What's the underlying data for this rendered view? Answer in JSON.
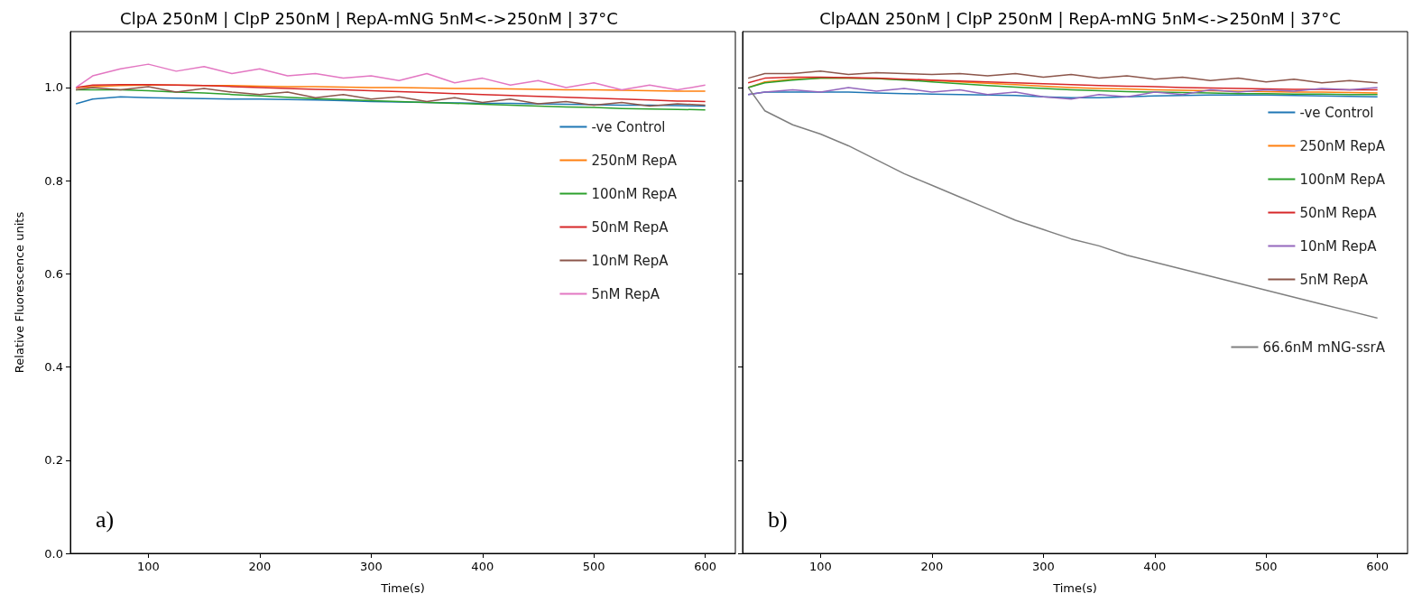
{
  "chart_data": [
    {
      "type": "line",
      "title": "ClpA 250nM | ClpP 250nM | RepA-mNG 5nM<->250nM | 37°C",
      "xlabel": "Time(s)",
      "ylabel": "Relative Fluorescence units",
      "annotations": [
        "a)"
      ],
      "legend": "right",
      "xlim": [
        30,
        627
      ],
      "xticks": [
        100,
        200,
        300,
        400,
        500,
        600
      ],
      "ylim": [
        0,
        1.12
      ],
      "yticks": [
        {
          "value": 0,
          "label": "0.0"
        },
        0.2,
        0.4,
        0.6,
        0.8,
        {
          "value": 1,
          "label": "1.0"
        }
      ],
      "grid": false,
      "x": [
        35,
        50,
        75,
        100,
        125,
        150,
        175,
        200,
        225,
        250,
        275,
        300,
        325,
        350,
        375,
        400,
        425,
        450,
        475,
        500,
        525,
        550,
        575,
        600
      ],
      "series": [
        {
          "name": "-ve Control",
          "color": "#1f77b4",
          "values": [
            0.965,
            0.975,
            0.98,
            0.978,
            0.977,
            0.976,
            0.975,
            0.975,
            0.974,
            0.973,
            0.972,
            0.97,
            0.969,
            0.968,
            0.967,
            0.966,
            0.966,
            0.965,
            0.964,
            0.963,
            0.962,
            0.962,
            0.961,
            0.96
          ]
        },
        {
          "name": "250nM RepA",
          "color": "#ff7f0e",
          "values": [
            1.0,
            1.002,
            1.004,
            1.005,
            1.005,
            1.004,
            1.004,
            1.003,
            1.002,
            1.002,
            1.001,
            1.0,
            1.0,
            0.999,
            0.998,
            0.998,
            0.997,
            0.996,
            0.995,
            0.995,
            0.994,
            0.993,
            0.992,
            0.992
          ]
        },
        {
          "name": "100nM RepA",
          "color": "#2ca02c",
          "values": [
            0.995,
            0.995,
            0.995,
            0.993,
            0.99,
            0.988,
            0.985,
            0.982,
            0.979,
            0.976,
            0.974,
            0.972,
            0.97,
            0.968,
            0.966,
            0.964,
            0.962,
            0.96,
            0.958,
            0.957,
            0.955,
            0.954,
            0.953,
            0.952
          ]
        },
        {
          "name": "50nM RepA",
          "color": "#d62728",
          "values": [
            1.0,
            1.005,
            1.006,
            1.006,
            1.005,
            1.004,
            1.002,
            1.0,
            0.998,
            0.996,
            0.995,
            0.993,
            0.991,
            0.989,
            0.987,
            0.985,
            0.983,
            0.981,
            0.979,
            0.977,
            0.975,
            0.973,
            0.971,
            0.97
          ]
        },
        {
          "name": "10nM RepA",
          "color": "#8c564b",
          "values": [
            0.995,
            1.0,
            0.995,
            1.002,
            0.99,
            0.998,
            0.99,
            0.985,
            0.99,
            0.978,
            0.985,
            0.975,
            0.98,
            0.97,
            0.978,
            0.968,
            0.975,
            0.965,
            0.97,
            0.962,
            0.968,
            0.96,
            0.965,
            0.962
          ]
        },
        {
          "name": "5nM RepA",
          "color": "#e377c2",
          "values": [
            1.0,
            1.025,
            1.04,
            1.05,
            1.035,
            1.045,
            1.03,
            1.04,
            1.025,
            1.03,
            1.02,
            1.025,
            1.015,
            1.03,
            1.01,
            1.02,
            1.005,
            1.015,
            1.0,
            1.01,
            0.995,
            1.005,
            0.995,
            1.005
          ]
        }
      ]
    },
    {
      "type": "line",
      "title": "ClpAΔN 250nM | ClpP 250nM | RepA-mNG 5nM<->250nM | 37°C",
      "xlabel": "Time(s)",
      "annotations": [
        "b)"
      ],
      "legend": "right",
      "tick_labels": "x",
      "xlim": [
        30,
        627
      ],
      "xticks": [
        100,
        200,
        300,
        400,
        500,
        600
      ],
      "ylim": [
        0,
        1.12
      ],
      "yticks": [
        0,
        0.2,
        0.4,
        0.6,
        0.8,
        1
      ],
      "grid": false,
      "x": [
        35,
        50,
        75,
        100,
        125,
        150,
        175,
        200,
        225,
        250,
        275,
        300,
        325,
        350,
        375,
        400,
        425,
        450,
        475,
        500,
        525,
        550,
        575,
        600
      ],
      "series": [
        {
          "name": "-ve Control",
          "color": "#1f77b4",
          "values": [
            0.985,
            0.99,
            0.99,
            0.99,
            0.99,
            0.988,
            0.987,
            0.986,
            0.985,
            0.984,
            0.983,
            0.98,
            0.978,
            0.978,
            0.98,
            0.982,
            0.983,
            0.984,
            0.984,
            0.984,
            0.983,
            0.982,
            0.981,
            0.98
          ]
        },
        {
          "name": "250nM RepA",
          "color": "#ff7f0e",
          "values": [
            1.0,
            1.012,
            1.018,
            1.02,
            1.02,
            1.019,
            1.017,
            1.015,
            1.012,
            1.009,
            1.006,
            1.003,
            1.0,
            0.998,
            0.997,
            0.995,
            0.994,
            0.993,
            0.992,
            0.991,
            0.99,
            0.99,
            0.989,
            0.988
          ]
        },
        {
          "name": "100nM RepA",
          "color": "#2ca02c",
          "values": [
            1.0,
            1.01,
            1.016,
            1.02,
            1.02,
            1.019,
            1.016,
            1.012,
            1.008,
            1.004,
            1.001,
            0.998,
            0.995,
            0.993,
            0.991,
            0.99,
            0.989,
            0.988,
            0.987,
            0.987,
            0.986,
            0.986,
            0.985,
            0.985
          ]
        },
        {
          "name": "50nM RepA",
          "color": "#d62728",
          "values": [
            1.01,
            1.02,
            1.022,
            1.022,
            1.021,
            1.02,
            1.018,
            1.016,
            1.014,
            1.012,
            1.01,
            1.008,
            1.006,
            1.004,
            1.003,
            1.002,
            1.0,
            0.999,
            0.998,
            0.997,
            0.996,
            0.996,
            0.995,
            0.995
          ]
        },
        {
          "name": "10nM RepA",
          "color": "#9467bd",
          "values": [
            0.985,
            0.99,
            0.995,
            0.99,
            1.0,
            0.992,
            0.998,
            0.99,
            0.995,
            0.985,
            0.99,
            0.98,
            0.975,
            0.985,
            0.98,
            0.99,
            0.985,
            0.995,
            0.99,
            0.995,
            0.992,
            0.998,
            0.995,
            1.0
          ]
        },
        {
          "name": "5nM RepA",
          "color": "#8c564b",
          "values": [
            1.02,
            1.03,
            1.03,
            1.035,
            1.028,
            1.032,
            1.03,
            1.028,
            1.03,
            1.025,
            1.03,
            1.022,
            1.028,
            1.02,
            1.025,
            1.018,
            1.022,
            1.015,
            1.02,
            1.012,
            1.018,
            1.01,
            1.015,
            1.01
          ]
        },
        {
          "name": "66.6nM mNG-ssrA",
          "color": "#7f7f7f",
          "values": [
            1.0,
            0.95,
            0.92,
            0.9,
            0.875,
            0.845,
            0.815,
            0.79,
            0.765,
            0.74,
            0.715,
            0.695,
            0.675,
            0.66,
            0.64,
            0.625,
            0.61,
            0.595,
            0.58,
            0.565,
            0.55,
            0.535,
            0.52,
            0.505
          ]
        }
      ]
    }
  ]
}
